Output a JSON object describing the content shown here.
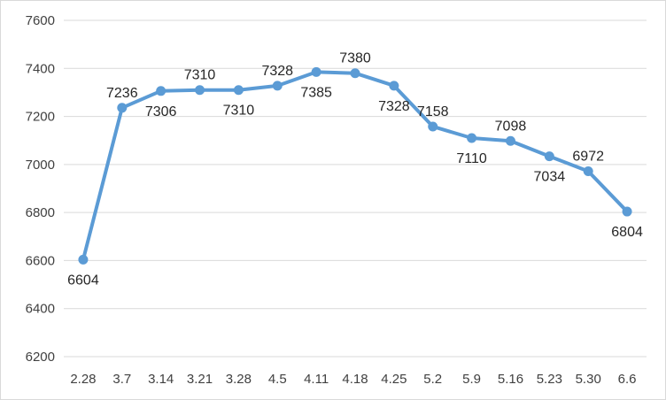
{
  "chart_data": {
    "type": "line",
    "categories": [
      "2.28",
      "3.7",
      "3.14",
      "3.21",
      "3.28",
      "4.5",
      "4.11",
      "4.18",
      "4.25",
      "5.2",
      "5.9",
      "5.16",
      "5.23",
      "5.30",
      "6.6"
    ],
    "series": [
      {
        "values": [
          6604,
          7236,
          7306,
          7310,
          7310,
          7328,
          7385,
          7380,
          7328,
          7158,
          7110,
          7098,
          7034,
          6972,
          6804
        ],
        "data_labels": [
          "6604",
          "7236",
          "7306",
          "7310",
          "7310",
          "7328",
          "7385",
          "7380",
          "7328",
          "7158",
          "7110",
          "7098",
          "7034",
          "6972",
          "6804"
        ],
        "label_positions": [
          "below",
          "above",
          "below",
          "above",
          "below",
          "above",
          "below",
          "above",
          "below",
          "above",
          "below",
          "above",
          "below",
          "above",
          "below"
        ]
      }
    ],
    "yticks": [
      6200,
      6400,
      6600,
      6800,
      7000,
      7200,
      7400,
      7600
    ],
    "ylim": [
      6200,
      7600
    ],
    "title": "",
    "xlabel": "",
    "ylabel": "",
    "grid": true,
    "legend": "none",
    "colors": {
      "line": "#5b9bd5",
      "grid": "#d9d9d9",
      "text": "#404040"
    }
  }
}
